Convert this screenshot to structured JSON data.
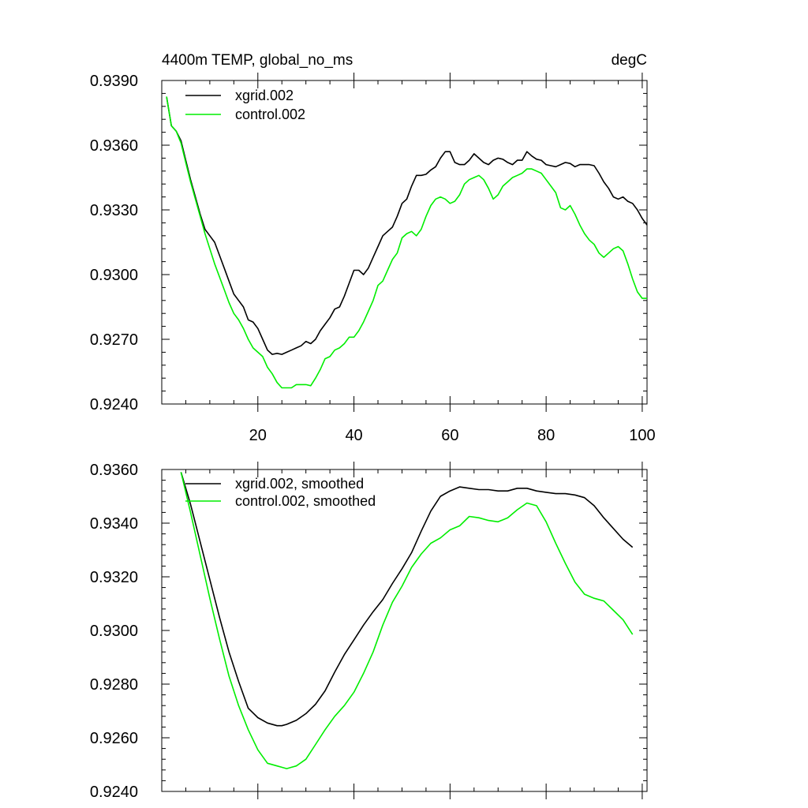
{
  "chart_data": [
    {
      "type": "line",
      "title_left": "4400m TEMP, global_no_ms",
      "title_right": "degC",
      "xlabel": "",
      "ylabel": "",
      "xlim": [
        0,
        101
      ],
      "ylim": [
        0.924,
        0.939
      ],
      "yticks": [
        "0.9240",
        "0.9270",
        "0.9300",
        "0.9330",
        "0.9360",
        "0.9390"
      ],
      "xticks": [
        "20",
        "40",
        "60",
        "80",
        "100"
      ],
      "series": [
        {
          "name": "xgrid.002",
          "color": "#000000",
          "x": [
            1,
            2,
            3,
            4,
            5,
            6,
            7,
            8,
            9,
            10,
            11,
            12,
            13,
            14,
            15,
            16,
            17,
            18,
            19,
            20,
            21,
            22,
            23,
            24,
            25,
            26,
            27,
            28,
            29,
            30,
            31,
            32,
            33,
            34,
            35,
            36,
            37,
            38,
            39,
            40,
            41,
            42,
            43,
            44,
            45,
            46,
            47,
            48,
            49,
            50,
            51,
            52,
            53,
            54,
            55,
            56,
            57,
            58,
            59,
            60,
            61,
            62,
            63,
            64,
            65,
            66,
            67,
            68,
            69,
            70,
            71,
            72,
            73,
            74,
            75,
            76,
            77,
            78,
            79,
            80,
            81,
            82,
            83,
            84,
            85,
            86,
            87,
            88,
            89,
            90,
            91,
            92,
            93,
            94,
            95,
            96,
            97,
            98,
            99,
            100,
            101
          ],
          "y": [
            0.93825,
            0.9369,
            0.93665,
            0.9362,
            0.9353,
            0.9344,
            0.9336,
            0.9328,
            0.9321,
            0.9318,
            0.9315,
            0.9309,
            0.9303,
            0.9297,
            0.9291,
            0.9288,
            0.9285,
            0.9279,
            0.9278,
            0.9275,
            0.927,
            0.9265,
            0.9263,
            0.92635,
            0.9263,
            0.9264,
            0.9265,
            0.9266,
            0.9267,
            0.9269,
            0.9268,
            0.927,
            0.9274,
            0.9277,
            0.928,
            0.9284,
            0.9285,
            0.929,
            0.9296,
            0.9302,
            0.9302,
            0.93,
            0.9303,
            0.9308,
            0.9313,
            0.9318,
            0.932,
            0.9322,
            0.9327,
            0.9333,
            0.9335,
            0.9341,
            0.9346,
            0.9346,
            0.93465,
            0.93485,
            0.935,
            0.9354,
            0.9357,
            0.9357,
            0.9352,
            0.9351,
            0.9351,
            0.9353,
            0.9356,
            0.9354,
            0.9352,
            0.9351,
            0.9353,
            0.9354,
            0.93535,
            0.9352,
            0.9351,
            0.9353,
            0.9353,
            0.9357,
            0.9355,
            0.93535,
            0.9353,
            0.9351,
            0.93505,
            0.935,
            0.9351,
            0.9352,
            0.93515,
            0.935,
            0.9351,
            0.9351,
            0.9351,
            0.93505,
            0.9347,
            0.9343,
            0.934,
            0.9336,
            0.9335,
            0.9336,
            0.9334,
            0.9333,
            0.933,
            0.9326,
            0.9323
          ]
        },
        {
          "name": "control.002",
          "color": "#00ee00",
          "x": [
            1,
            2,
            3,
            4,
            5,
            6,
            7,
            8,
            9,
            10,
            11,
            12,
            13,
            14,
            15,
            16,
            17,
            18,
            19,
            20,
            21,
            22,
            23,
            24,
            25,
            26,
            27,
            28,
            29,
            30,
            31,
            32,
            33,
            34,
            35,
            36,
            37,
            38,
            39,
            40,
            41,
            42,
            43,
            44,
            45,
            46,
            47,
            48,
            49,
            50,
            51,
            52,
            53,
            54,
            55,
            56,
            57,
            58,
            59,
            60,
            61,
            62,
            63,
            64,
            65,
            66,
            67,
            68,
            69,
            70,
            71,
            72,
            73,
            74,
            75,
            76,
            77,
            78,
            79,
            80,
            81,
            82,
            83,
            84,
            85,
            86,
            87,
            88,
            89,
            90,
            91,
            92,
            93,
            94,
            95,
            96,
            97,
            98,
            99,
            100,
            101
          ],
          "y": [
            0.93825,
            0.9369,
            0.93665,
            0.9361,
            0.9352,
            0.9343,
            0.9335,
            0.9327,
            0.9319,
            0.9312,
            0.9305,
            0.9299,
            0.9293,
            0.9287,
            0.9282,
            0.9279,
            0.9275,
            0.927,
            0.9266,
            0.9264,
            0.9262,
            0.9257,
            0.9254,
            0.925,
            0.92475,
            0.92475,
            0.92475,
            0.9249,
            0.9249,
            0.9249,
            0.92485,
            0.9252,
            0.9256,
            0.9261,
            0.9262,
            0.9265,
            0.9266,
            0.9268,
            0.9271,
            0.9271,
            0.9274,
            0.9278,
            0.9283,
            0.9288,
            0.9295,
            0.9297,
            0.9302,
            0.9307,
            0.931,
            0.9317,
            0.9319,
            0.932,
            0.9318,
            0.9321,
            0.9327,
            0.9332,
            0.9335,
            0.9336,
            0.9335,
            0.9333,
            0.9334,
            0.9337,
            0.9342,
            0.9344,
            0.9345,
            0.9346,
            0.9344,
            0.934,
            0.9335,
            0.9337,
            0.9341,
            0.9343,
            0.9345,
            0.9346,
            0.9347,
            0.9349,
            0.9349,
            0.9348,
            0.9347,
            0.9344,
            0.9341,
            0.9338,
            0.9331,
            0.933,
            0.9332,
            0.9328,
            0.9323,
            0.9319,
            0.9316,
            0.9314,
            0.931,
            0.9308,
            0.931,
            0.9312,
            0.9313,
            0.9311,
            0.9305,
            0.9298,
            0.9292,
            0.9289,
            0.9289
          ]
        }
      ]
    },
    {
      "type": "line",
      "title_left": "",
      "title_right": "",
      "xlabel": "",
      "ylabel": "",
      "xlim": [
        0,
        101
      ],
      "ylim": [
        0.924,
        0.936
      ],
      "yticks": [
        "0.9240",
        "0.9260",
        "0.9280",
        "0.9300",
        "0.9320",
        "0.9340",
        "0.9360"
      ],
      "xticks": [],
      "series": [
        {
          "name": "xgrid.002, smoothed",
          "color": "#000000",
          "x": [
            4,
            6,
            8,
            10,
            12,
            14,
            16,
            18,
            20,
            22,
            24,
            25,
            26,
            28,
            30,
            32,
            34,
            36,
            38,
            40,
            42,
            44,
            46,
            48,
            50,
            52,
            54,
            56,
            58,
            60,
            62,
            64,
            66,
            68,
            70,
            72,
            74,
            76,
            78,
            80,
            82,
            84,
            86,
            88,
            90,
            92,
            94,
            96,
            98
          ],
          "y": [
            0.9359,
            0.9347,
            0.9333,
            0.9319,
            0.9305,
            0.9292,
            0.9281,
            0.9271,
            0.92675,
            0.92655,
            0.92645,
            0.92645,
            0.9265,
            0.92665,
            0.9269,
            0.92725,
            0.92775,
            0.92845,
            0.9291,
            0.92965,
            0.9302,
            0.9307,
            0.93115,
            0.93175,
            0.9323,
            0.9329,
            0.9337,
            0.93445,
            0.935,
            0.9352,
            0.93535,
            0.9353,
            0.93525,
            0.93525,
            0.9352,
            0.9352,
            0.9353,
            0.9353,
            0.9352,
            0.93515,
            0.9351,
            0.9351,
            0.93505,
            0.93495,
            0.93465,
            0.9342,
            0.9338,
            0.9334,
            0.9331
          ]
        },
        {
          "name": "control.002, smoothed",
          "color": "#00ee00",
          "x": [
            4,
            6,
            8,
            10,
            12,
            14,
            16,
            18,
            20,
            22,
            24,
            25,
            26,
            27,
            28,
            30,
            32,
            34,
            36,
            38,
            40,
            42,
            44,
            46,
            48,
            50,
            52,
            54,
            56,
            58,
            60,
            62,
            64,
            66,
            68,
            70,
            72,
            74,
            76,
            78,
            80,
            82,
            84,
            86,
            88,
            90,
            92,
            94,
            96,
            98
          ],
          "y": [
            0.9359,
            0.9344,
            0.9328,
            0.9312,
            0.9297,
            0.9283,
            0.9272,
            0.9263,
            0.92555,
            0.92505,
            0.92495,
            0.9249,
            0.92485,
            0.9249,
            0.92495,
            0.9252,
            0.92575,
            0.9263,
            0.9268,
            0.9272,
            0.9277,
            0.9284,
            0.9292,
            0.9302,
            0.93105,
            0.93165,
            0.93235,
            0.93285,
            0.93325,
            0.93345,
            0.93375,
            0.9339,
            0.93425,
            0.9342,
            0.9341,
            0.93405,
            0.9342,
            0.9345,
            0.93475,
            0.93465,
            0.93405,
            0.93325,
            0.9325,
            0.9318,
            0.93135,
            0.9312,
            0.9311,
            0.93075,
            0.9304,
            0.92985
          ]
        }
      ]
    }
  ]
}
